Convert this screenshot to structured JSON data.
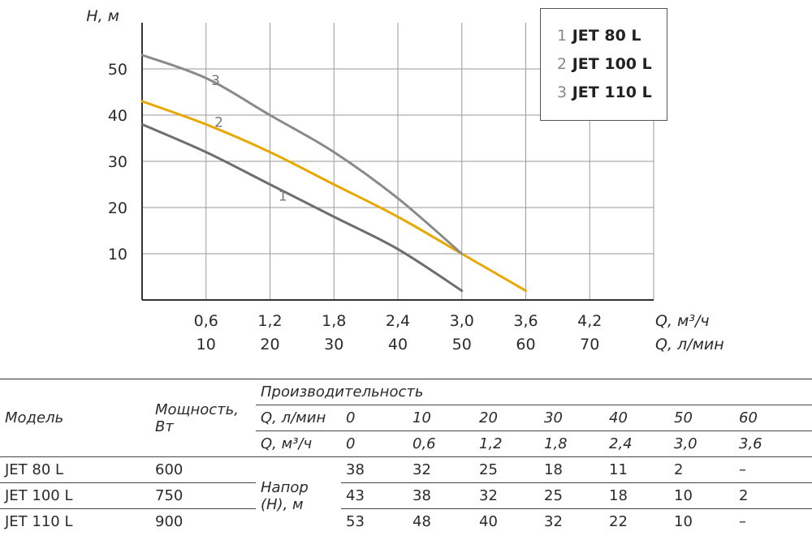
{
  "chart_data": {
    "type": "line",
    "xlabel": "Q, м³/ч",
    "xlabel2": "Q, л/мин",
    "ylabel": "H, м",
    "x_ticks": [
      "0,6",
      "1,2",
      "1,8",
      "2,4",
      "3,0",
      "3,6",
      "4,2"
    ],
    "x_ticks2": [
      "10",
      "20",
      "30",
      "40",
      "50",
      "60",
      "70"
    ],
    "y_ticks": [
      "10",
      "20",
      "30",
      "40",
      "50"
    ],
    "xlim": [
      0,
      4.8
    ],
    "ylim": [
      0,
      60
    ],
    "grid": true,
    "series": [
      {
        "name": "JET 80 L",
        "label": "1",
        "color": "#6e6e6e",
        "x": [
          0,
          0.6,
          1.2,
          1.8,
          2.4,
          3.0
        ],
        "y": [
          38,
          32,
          25,
          18,
          11,
          2
        ]
      },
      {
        "name": "JET 100 L",
        "label": "2",
        "color": "#e8a800",
        "x": [
          0,
          0.6,
          1.2,
          1.8,
          2.4,
          3.0,
          3.6
        ],
        "y": [
          43,
          38,
          32,
          25,
          18,
          10,
          2
        ]
      },
      {
        "name": "JET 110 L",
        "label": "3",
        "color": "#8a8a8a",
        "x": [
          0,
          0.6,
          1.2,
          1.8,
          2.4,
          3.0
        ],
        "y": [
          53,
          48,
          40,
          32,
          22,
          10
        ]
      }
    ]
  },
  "legend": [
    {
      "num": "1",
      "name": "JET 80 L"
    },
    {
      "num": "2",
      "name": "JET 100 L"
    },
    {
      "num": "3",
      "name": "JET 110 L"
    }
  ],
  "table": {
    "model_header": "Модель",
    "power_header_1": "Мощность,",
    "power_header_2": "Вт",
    "perf_header": "Производительность",
    "q_lmin_label": "Q, л/мин",
    "q_m3h_label": "Q, м³/ч",
    "q_lmin": [
      "0",
      "10",
      "20",
      "30",
      "40",
      "50",
      "60"
    ],
    "q_m3h": [
      "0",
      "0,6",
      "1,2",
      "1,8",
      "2,4",
      "3,0",
      "3,6"
    ],
    "head_label_1": "Напор",
    "head_label_2": "(H), м",
    "rows": [
      {
        "model": "JET 80 L",
        "power": "600",
        "values": [
          "38",
          "32",
          "25",
          "18",
          "11",
          "2",
          "–"
        ]
      },
      {
        "model": "JET 100 L",
        "power": "750",
        "values": [
          "43",
          "38",
          "32",
          "25",
          "18",
          "10",
          "2"
        ]
      },
      {
        "model": "JET 110 L",
        "power": "900",
        "values": [
          "53",
          "48",
          "40",
          "32",
          "22",
          "10",
          "–"
        ]
      }
    ]
  }
}
